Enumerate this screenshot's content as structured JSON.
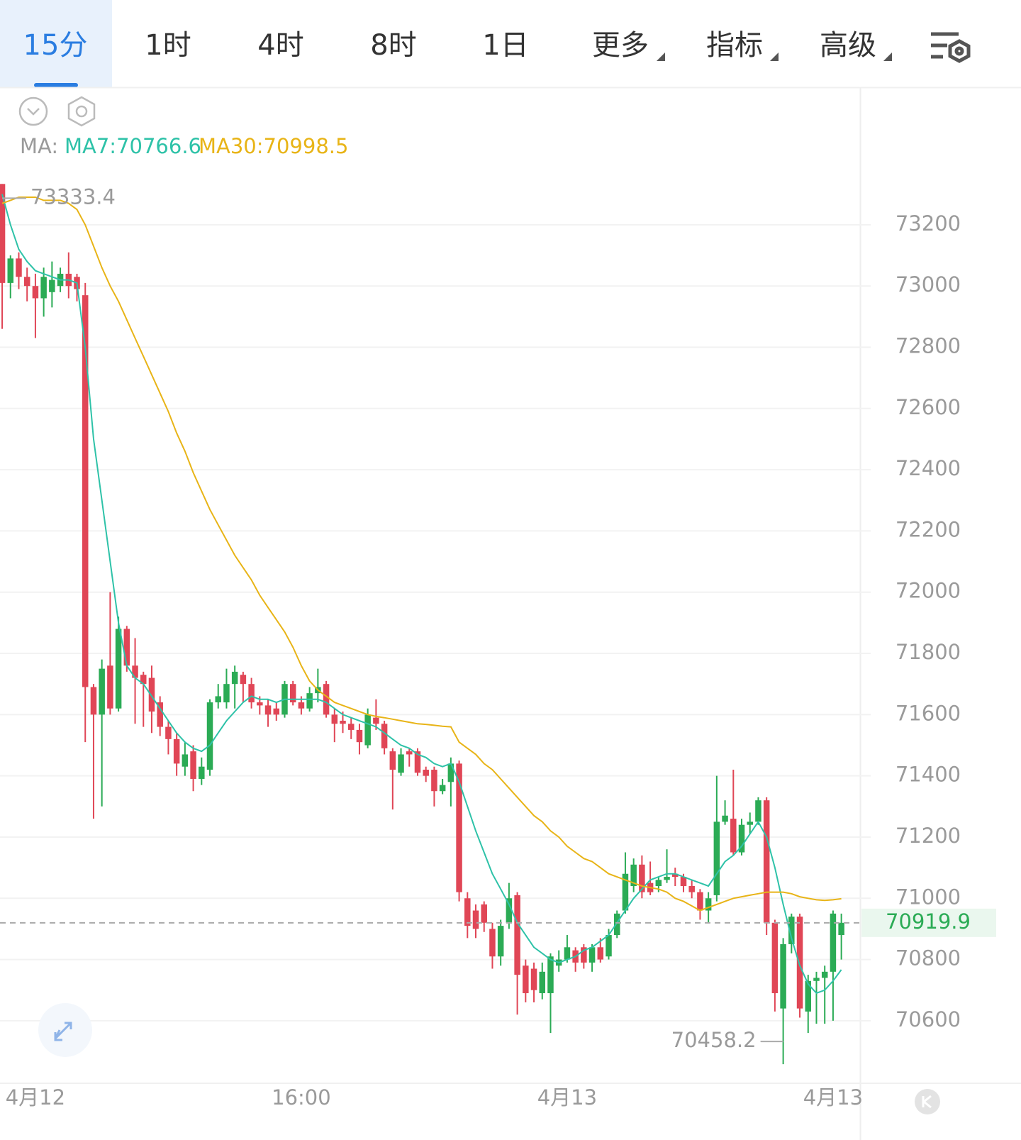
{
  "tabs": [
    "15分",
    "1时",
    "4时",
    "8时",
    "1日",
    "更多",
    "指标",
    "高级"
  ],
  "chart_data": {
    "type": "candlestick",
    "ma_prefix": "MA:",
    "legend_labels": [
      "MA7:70766.6",
      "MA30:70998.5"
    ],
    "up_color": "#2bab55",
    "down_color": "#e04656",
    "xlim": [
      -0.26,
      103.25
    ],
    "xticks": [
      {
        "value": 4,
        "label": "4月12"
      },
      {
        "value": 36,
        "label": "16:00"
      },
      {
        "value": 68,
        "label": "4月13"
      },
      {
        "value": 100,
        "label": "4月13"
      }
    ],
    "ylim": [
      70412,
      73355
    ],
    "yticks": [
      70600,
      70800,
      71000,
      71200,
      71400,
      71600,
      71800,
      72000,
      72200,
      72400,
      72600,
      72800,
      73000,
      73200
    ],
    "grid": true,
    "open": [
      73333.4,
      73010,
      73090,
      73030,
      73000,
      72960,
      72980,
      73000,
      73040,
      73030,
      72970,
      71690,
      71600,
      71760,
      71620,
      71880,
      71760,
      71730,
      71720,
      71640,
      71560,
      71520,
      71430,
      71480,
      71390,
      71420,
      71640,
      71640,
      71700,
      71730,
      71700,
      71640,
      71630,
      71620,
      71600,
      71700,
      71640,
      71620,
      71670,
      71700,
      71600,
      71580,
      71570,
      71550,
      71500,
      71590,
      71570,
      71480,
      71410,
      71480,
      71480,
      71420,
      71420,
      71350,
      71380,
      71440,
      71000,
      70960,
      70980,
      70900,
      70810,
      70920,
      71010,
      70780,
      70770,
      70690,
      70690,
      70780,
      70800,
      70830,
      70840,
      70790,
      70840,
      70810,
      70880,
      70960,
      71040,
      71110,
      71050,
      71040,
      71060,
      71080,
      71070,
      71040,
      71020,
      70960,
      71010,
      71250,
      71260,
      71150,
      71240,
      71250,
      71320,
      70920,
      70640,
      70850,
      70940,
      70630,
      70730,
      70740,
      70760,
      70880
    ],
    "high": [
      73333.4,
      73100,
      73110,
      73060,
      73040,
      73060,
      73080,
      73060,
      73110,
      73040,
      73010,
      71700,
      71780,
      72000,
      71920,
      71890,
      71850,
      71740,
      71760,
      71660,
      71580,
      71540,
      71510,
      71500,
      71460,
      71650,
      71700,
      71750,
      71760,
      71740,
      71720,
      71660,
      71650,
      71640,
      71710,
      71710,
      71660,
      71690,
      71750,
      71710,
      71620,
      71610,
      71590,
      71570,
      71620,
      71650,
      71580,
      71490,
      71490,
      71490,
      71490,
      71430,
      71430,
      71390,
      71460,
      71450,
      71020,
      70980,
      70990,
      70920,
      70930,
      71050,
      71020,
      70800,
      70790,
      70790,
      70820,
      70830,
      70880,
      70840,
      70850,
      70850,
      70870,
      70900,
      70960,
      71150,
      71130,
      71140,
      71120,
      71070,
      71160,
      71100,
      71080,
      71060,
      71030,
      71020,
      71400,
      71320,
      71420,
      71260,
      71280,
      71330,
      71330,
      70930,
      70870,
      70950,
      70950,
      70750,
      70760,
      70780,
      70960,
      70950
    ],
    "low": [
      72860,
      72960,
      72990,
      72950,
      72830,
      72900,
      72930,
      72980,
      72960,
      72950,
      71510,
      71260,
      71300,
      71600,
      71610,
      71740,
      71570,
      71560,
      71540,
      71530,
      71470,
      71400,
      71400,
      71350,
      71370,
      71400,
      71620,
      71620,
      71620,
      71640,
      71620,
      71600,
      71560,
      71580,
      71590,
      71630,
      71600,
      71610,
      71640,
      71590,
      71510,
      71540,
      71520,
      71470,
      71490,
      71550,
      71470,
      71290,
      71400,
      71430,
      71400,
      71380,
      71300,
      71340,
      71300,
      70990,
      70870,
      70870,
      70890,
      70770,
      70780,
      70900,
      70620,
      70660,
      70660,
      70670,
      70560,
      70760,
      70790,
      70760,
      70770,
      70760,
      70790,
      70800,
      70870,
      70950,
      71020,
      71000,
      71010,
      71020,
      71050,
      71040,
      71020,
      71000,
      70930,
      70920,
      70990,
      71240,
      71140,
      71140,
      71210,
      71240,
      70880,
      70630,
      70458.2,
      70820,
      70610,
      70560,
      70590,
      70590,
      70600,
      70800
    ],
    "close": [
      73010,
      73090,
      73030,
      73000,
      72960,
      73030,
      73020,
      73040,
      73000,
      72990,
      71690,
      71600,
      71750,
      71620,
      71880,
      71760,
      71720,
      71700,
      71610,
      71560,
      71520,
      71440,
      71470,
      71390,
      71430,
      71640,
      71660,
      71700,
      71740,
      71700,
      71640,
      71630,
      71600,
      71600,
      71700,
      71640,
      71620,
      71670,
      71690,
      71600,
      71570,
      71570,
      71550,
      71510,
      71600,
      71570,
      71490,
      71420,
      71470,
      71470,
      71410,
      71400,
      71350,
      71370,
      71440,
      71020,
      70910,
      70900,
      70920,
      70810,
      70910,
      71000,
      70750,
      70690,
      70700,
      70760,
      70810,
      70800,
      70840,
      70790,
      70790,
      70840,
      70800,
      70880,
      70950,
      71080,
      71110,
      71020,
      71020,
      71060,
      71070,
      71070,
      71040,
      71020,
      70960,
      71000,
      71250,
      71270,
      71150,
      71240,
      71250,
      71320,
      70920,
      70690,
      70850,
      70940,
      70640,
      70730,
      70740,
      70760,
      70950,
      70919.9
    ],
    "ma": [
      {
        "color": "#2ec2a8",
        "values": [
          73300,
          73200,
          73120,
          73080,
          73050,
          73040,
          73030,
          73020,
          73020,
          73010,
          72800,
          72500,
          72300,
          72100,
          71900,
          71760,
          71720,
          71700,
          71660,
          71620,
          71580,
          71540,
          71510,
          71490,
          71480,
          71500,
          71540,
          71580,
          71610,
          71640,
          71660,
          71650,
          71650,
          71640,
          71650,
          71650,
          71650,
          71650,
          71650,
          71640,
          71620,
          71600,
          71590,
          71580,
          71570,
          71560,
          71540,
          71520,
          71500,
          71490,
          71470,
          71460,
          71440,
          71430,
          71440,
          71380,
          71300,
          71220,
          71150,
          71080,
          71030,
          70980,
          70920,
          70880,
          70840,
          70820,
          70800,
          70790,
          70800,
          70810,
          70830,
          70840,
          70860,
          70880,
          70920,
          70960,
          71000,
          71030,
          71060,
          71070,
          71080,
          71080,
          71070,
          71060,
          71050,
          71040,
          71080,
          71120,
          71140,
          71170,
          71210,
          71250,
          71200,
          71100,
          70980,
          70870,
          70780,
          70720,
          70690,
          70700,
          70730,
          70766.6
        ]
      },
      {
        "color": "#e8b417",
        "values": [
          73270,
          73280,
          73290,
          73290,
          73290,
          73280,
          73280,
          73280,
          73270,
          73250,
          73200,
          73130,
          73060,
          73000,
          72950,
          72890,
          72830,
          72770,
          72710,
          72650,
          72590,
          72520,
          72460,
          72390,
          72330,
          72270,
          72220,
          72170,
          72120,
          72080,
          72040,
          71990,
          71950,
          71910,
          71870,
          71820,
          71760,
          71710,
          71680,
          71660,
          71640,
          71630,
          71620,
          71610,
          71600,
          71594,
          71590,
          71585,
          71580,
          71575,
          71570,
          71568,
          71565,
          71562,
          71560,
          71510,
          71490,
          71470,
          71440,
          71420,
          71390,
          71360,
          71330,
          71300,
          71270,
          71250,
          71220,
          71200,
          71170,
          71150,
          71130,
          71120,
          71100,
          71080,
          71070,
          71060,
          71050,
          71040,
          71035,
          71030,
          71020,
          71000,
          70990,
          70975,
          70960,
          70970,
          70980,
          70990,
          71000,
          71005,
          71010,
          71015,
          71020,
          71020,
          71020,
          71015,
          71005,
          71000,
          70995,
          70993,
          70995,
          70998.5
        ]
      }
    ]
  }
}
